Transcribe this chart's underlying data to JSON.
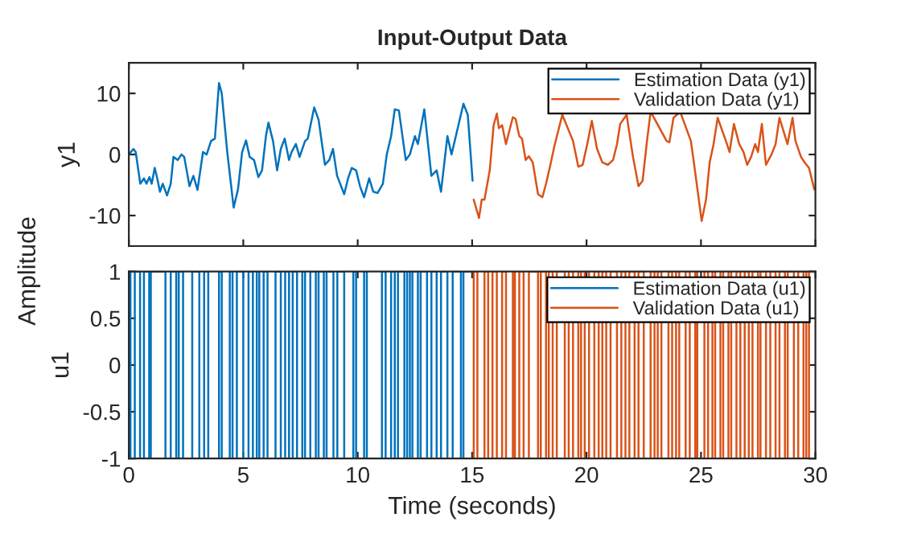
{
  "chart_data": [
    {
      "type": "line",
      "title": "Input-Output Data",
      "ylabel": "y1",
      "annotations": [
        "Amplitude"
      ],
      "xlim": [
        0,
        30
      ],
      "xticks": [
        0,
        5,
        10,
        15,
        20,
        25,
        30
      ],
      "ylim": [
        -15,
        15
      ],
      "yticks": [
        -10,
        0,
        10
      ],
      "tick_labels": "y",
      "legend": "top right",
      "grid": false,
      "series": [
        {
          "name": "Estimation Data (y1)",
          "color": "#0072bd",
          "x": [
            0,
            0.2,
            0.3,
            0.5,
            0.66,
            0.77,
            0.9,
            1.0,
            1.13,
            1.24,
            1.36,
            1.48,
            1.67,
            1.83,
            1.95,
            2.14,
            2.3,
            2.42,
            2.65,
            2.82,
            3.0,
            3.24,
            3.4,
            3.59,
            3.76,
            3.94,
            4.06,
            4.3,
            4.58,
            4.77,
            4.95,
            5.12,
            5.28,
            5.47,
            5.66,
            5.82,
            5.99,
            6.1,
            6.3,
            6.48,
            6.64,
            6.81,
            7.0,
            7.11,
            7.3,
            7.46,
            7.7,
            7.82,
            8.1,
            8.29,
            8.57,
            8.76,
            8.92,
            9.1,
            9.41,
            9.58,
            9.74,
            9.93,
            10.1,
            10.28,
            10.5,
            10.68,
            10.87,
            11.1,
            11.27,
            11.46,
            11.62,
            11.8,
            12.1,
            12.28,
            12.5,
            12.63,
            12.91,
            13.22,
            13.45,
            13.64,
            13.92,
            14.1,
            14.32,
            14.62,
            14.81,
            15.02
          ],
          "values": [
            0,
            0.9,
            0.4,
            -4.8,
            -3.9,
            -4.8,
            -3.7,
            -4.8,
            -2.2,
            -3.9,
            -6.1,
            -4.8,
            -6.7,
            -4.8,
            -0.4,
            -0.9,
            0,
            -0.4,
            -5.2,
            -3.5,
            -5.8,
            0.4,
            0,
            2.2,
            2.6,
            11.7,
            10,
            0.4,
            -8.7,
            -5.7,
            0.4,
            2.3,
            -0.4,
            -0.9,
            -3.7,
            -2.6,
            3.0,
            5.2,
            2.2,
            -2.6,
            0.9,
            2.6,
            -0.9,
            0.4,
            1.7,
            -0.4,
            2.2,
            2.6,
            7.7,
            5.7,
            -1.7,
            -0.9,
            0.9,
            -3.5,
            -6.5,
            -3.9,
            -2.2,
            -2.6,
            -5.2,
            -7.0,
            -3.9,
            -6.1,
            -6.3,
            -4.8,
            0,
            3.0,
            7.4,
            7.2,
            -0.9,
            0,
            3.0,
            1.7,
            7.4,
            -3.5,
            -2.6,
            -6.1,
            3.0,
            0,
            3.5,
            8.3,
            6.5,
            -4.3
          ]
        },
        {
          "name": "Validation Data (y1)",
          "color": "#d95319",
          "x": [
            15.07,
            15.3,
            15.42,
            15.54,
            15.77,
            15.94,
            16.08,
            16.17,
            16.31,
            16.48,
            16.6,
            16.78,
            16.9,
            17.06,
            17.18,
            17.34,
            17.48,
            17.65,
            17.88,
            18.07,
            18.23,
            18.42,
            18.59,
            18.94,
            19.41,
            19.64,
            19.83,
            20.06,
            20.23,
            20.46,
            20.69,
            20.93,
            21.16,
            21.33,
            21.47,
            21.75,
            22.03,
            22.27,
            22.45,
            22.64,
            22.8,
            23.5,
            23.62,
            23.8,
            24.09,
            24.56,
            24.75,
            25.03,
            25.22,
            25.38,
            25.55,
            25.73,
            26.09,
            26.25,
            26.44,
            26.67,
            26.86,
            27.02,
            27.19,
            27.37,
            27.49,
            27.66,
            27.84,
            28.08,
            28.26,
            28.43,
            28.78,
            29.0,
            29.13,
            29.37,
            29.53,
            29.72,
            29.95
          ],
          "values": [
            -7.4,
            -10.4,
            -7.4,
            -7.4,
            -2.6,
            4.8,
            6.7,
            4.3,
            4.8,
            1.7,
            3.5,
            6.1,
            5.8,
            3.0,
            2.6,
            -0.9,
            -0.3,
            -1.3,
            -6.5,
            -7.0,
            -4.8,
            -1.7,
            1.3,
            6.5,
            2.2,
            -2.0,
            -1.7,
            2.2,
            5.5,
            0.9,
            -1.3,
            -1.7,
            -0.9,
            1.7,
            5,
            6.5,
            -0.4,
            -5.2,
            -4.3,
            2.2,
            7,
            2.2,
            2.0,
            6,
            7,
            2.2,
            -3.0,
            -10.9,
            -7.4,
            -1.3,
            1.7,
            6,
            2.2,
            0.4,
            5,
            1.7,
            0.4,
            -1.7,
            -0.4,
            1.7,
            0.4,
            5,
            -1.7,
            0,
            1.7,
            6,
            1.7,
            6,
            2.2,
            -0.4,
            -1.3,
            -2.2,
            -5.7
          ]
        }
      ]
    },
    {
      "type": "step",
      "xlabel": "Time (seconds)",
      "ylabel": "u1",
      "xlim": [
        0,
        30
      ],
      "xticks": [
        0,
        5,
        10,
        15,
        20,
        25,
        30
      ],
      "ylim": [
        -1,
        1
      ],
      "yticks": [
        -1,
        -0.5,
        0,
        0.5,
        1
      ],
      "legend": "top right",
      "grid": false,
      "series": [
        {
          "name": "Estimation Data (u1)",
          "color": "#0072bd",
          "x": [
            0,
            0.07,
            0.26,
            0.49,
            0.66,
            0.89,
            0.96,
            1.6,
            1.83,
            2.07,
            2.18,
            2.37,
            2.77,
            3.08,
            3.29,
            3.47,
            3.94,
            4.06,
            4.41,
            4.53,
            4.72,
            5.0,
            5.23,
            5.42,
            5.59,
            5.7,
            5.89,
            6.06,
            6.41,
            6.64,
            6.83,
            7.0,
            7.16,
            7.35,
            7.58,
            7.7,
            7.93,
            8.17,
            8.29,
            8.52,
            8.64,
            8.94,
            9.11,
            9.41,
            9.81,
            9.93,
            10.28,
            10.4,
            11.06,
            11.22,
            11.46,
            11.62,
            11.76,
            12.04,
            12.16,
            12.28,
            12.39,
            12.63,
            12.75,
            13.03,
            13.22,
            13.45,
            13.64,
            13.92,
            14.15,
            14.51,
            14.62,
            15
          ],
          "values": [
            1,
            -1,
            1,
            -1,
            1,
            -1,
            1,
            -1,
            1,
            -1,
            1,
            -1,
            1,
            -1,
            1,
            -1,
            1,
            -1,
            1,
            -1,
            1,
            -1,
            1,
            -1,
            1,
            -1,
            1,
            -1,
            1,
            -1,
            1,
            -1,
            1,
            -1,
            1,
            -1,
            1,
            -1,
            1,
            -1,
            1,
            -1,
            1,
            -1,
            1,
            -1,
            1,
            -1,
            1,
            -1,
            1,
            -1,
            1,
            -1,
            1,
            -1,
            1,
            -1,
            1,
            -1,
            1,
            -1,
            1,
            -1,
            1,
            -1,
            1,
            1
          ]
        },
        {
          "name": "Validation Data (u1)",
          "color": "#d95319",
          "x": [
            15,
            15.07,
            15.23,
            15.54,
            15.7,
            15.89,
            16.08,
            16.31,
            16.48,
            16.78,
            16.87,
            17.06,
            17.25,
            17.48,
            17.88,
            18.0,
            18.23,
            18.35,
            18.52,
            18.7,
            19.05,
            19.22,
            19.41,
            19.64,
            19.76,
            19.92,
            20.11,
            20.34,
            20.53,
            20.69,
            20.86,
            21.05,
            21.33,
            21.52,
            21.7,
            21.87,
            22.1,
            22.27,
            22.5,
            22.8,
            22.97,
            23.11,
            23.27,
            23.58,
            23.74,
            23.91,
            24.05,
            24.33,
            24.51,
            24.75,
            24.84,
            25.15,
            25.31,
            25.5,
            25.62,
            25.85,
            25.97,
            26.2,
            26.32,
            26.55,
            26.72,
            26.91,
            27.09,
            27.25,
            27.49,
            27.6,
            27.84,
            28.03,
            28.26,
            28.43,
            28.67,
            28.79,
            29.06,
            29.25,
            29.48,
            29.6,
            29.72,
            30
          ],
          "values": [
            -1,
            1,
            -1,
            1,
            -1,
            1,
            -1,
            1,
            -1,
            1,
            -1,
            1,
            -1,
            1,
            -1,
            1,
            -1,
            1,
            -1,
            1,
            -1,
            1,
            -1,
            1,
            -1,
            1,
            -1,
            1,
            -1,
            1,
            -1,
            1,
            -1,
            1,
            -1,
            1,
            -1,
            1,
            -1,
            1,
            -1,
            1,
            -1,
            1,
            -1,
            1,
            -1,
            1,
            -1,
            1,
            -1,
            1,
            -1,
            1,
            -1,
            1,
            -1,
            1,
            -1,
            1,
            -1,
            1,
            -1,
            1,
            -1,
            1,
            -1,
            1,
            -1,
            1,
            -1,
            1,
            -1,
            1,
            -1,
            1,
            -1,
            -1
          ]
        }
      ]
    }
  ]
}
